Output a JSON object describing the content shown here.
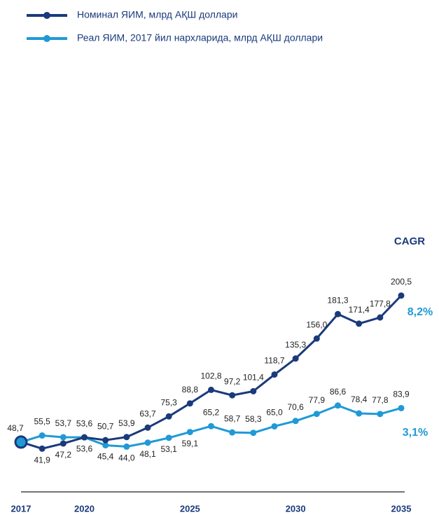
{
  "chart_data": {
    "type": "line",
    "legend": "top-left",
    "x": [
      2017,
      2018,
      2019,
      2020,
      2021,
      2022,
      2023,
      2024,
      2025,
      2026,
      2027,
      2028,
      2029,
      2030,
      2031,
      2032,
      2033,
      2034,
      2035
    ],
    "xlim": [
      2017,
      2035
    ],
    "xticks": [
      2017,
      2020,
      2025,
      2030,
      2035
    ],
    "ylim": [
      0,
      220
    ],
    "series": [
      {
        "name": "Номинал ЯИМ, млрд АҚШ доллари",
        "color": "#1a3a7c",
        "values": [
          48.7,
          41.9,
          47.2,
          53.6,
          50.7,
          53.9,
          63.7,
          75.3,
          88.8,
          102.8,
          97.2,
          101.4,
          118.7,
          135.3,
          156.0,
          181.3,
          171.4,
          177.8,
          200.5
        ],
        "value_labels": [
          "48,7",
          "41,9",
          "47,2",
          "53,6",
          "50,7",
          "53,9",
          "63,7",
          "75,3",
          "88,8",
          "102,8",
          "97,2",
          "101,4",
          "118,7",
          "135,3",
          "156,0",
          "181,3",
          "171,4",
          "177,8",
          "200,5"
        ]
      },
      {
        "name": "Реал ЯИМ, 2017 йил нархларида, млрд АҚШ доллари",
        "color": "#1f9ad6",
        "values": [
          48.7,
          55.5,
          53.7,
          53.6,
          45.4,
          44.0,
          48.1,
          53.1,
          59.1,
          65.2,
          58.7,
          58.3,
          65.0,
          70.6,
          77.9,
          86.6,
          78.4,
          77.8,
          83.9
        ],
        "value_labels": [
          null,
          "55,5",
          "53,7",
          "53,6",
          "45,4",
          "44,0",
          "48,1",
          "53,1",
          "59,1",
          "65,2",
          "58,7",
          "58,3",
          "65,0",
          "70,6",
          "77,9",
          "86,6",
          "78,4",
          "77,8",
          "83,9"
        ]
      }
    ],
    "annotations": [
      "CAGR",
      "8,2%",
      "3,1%"
    ]
  }
}
